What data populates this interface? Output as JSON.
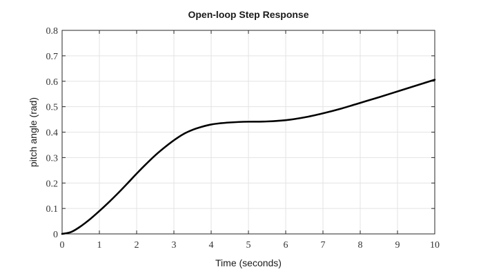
{
  "chart_data": {
    "type": "line",
    "title": "Open-loop Step Response",
    "xlabel": "Time (seconds)",
    "ylabel": "pitch angle (rad)",
    "xlim": [
      0,
      10
    ],
    "ylim": [
      0,
      0.8
    ],
    "xticks": [
      0,
      1,
      2,
      3,
      4,
      5,
      6,
      7,
      8,
      9,
      10
    ],
    "yticks": [
      0,
      0.1,
      0.2,
      0.3,
      0.4,
      0.5,
      0.6,
      0.7,
      0.8
    ],
    "grid": true,
    "legend": "none",
    "series": [
      {
        "color": "#000000",
        "x": [
          0,
          0.25,
          0.5,
          0.75,
          1,
          1.25,
          1.5,
          1.75,
          2,
          2.25,
          2.5,
          2.75,
          3,
          3.25,
          3.5,
          3.75,
          4,
          4.25,
          4.5,
          4.75,
          5,
          5.5,
          6,
          6.5,
          7,
          7.5,
          8,
          8.5,
          9,
          9.5,
          10
        ],
        "y": [
          0,
          0.008,
          0.03,
          0.058,
          0.09,
          0.124,
          0.16,
          0.198,
          0.237,
          0.274,
          0.309,
          0.34,
          0.368,
          0.392,
          0.409,
          0.421,
          0.43,
          0.435,
          0.438,
          0.44,
          0.441,
          0.442,
          0.447,
          0.458,
          0.474,
          0.493,
          0.515,
          0.537,
          0.56,
          0.583,
          0.606
        ]
      }
    ]
  }
}
